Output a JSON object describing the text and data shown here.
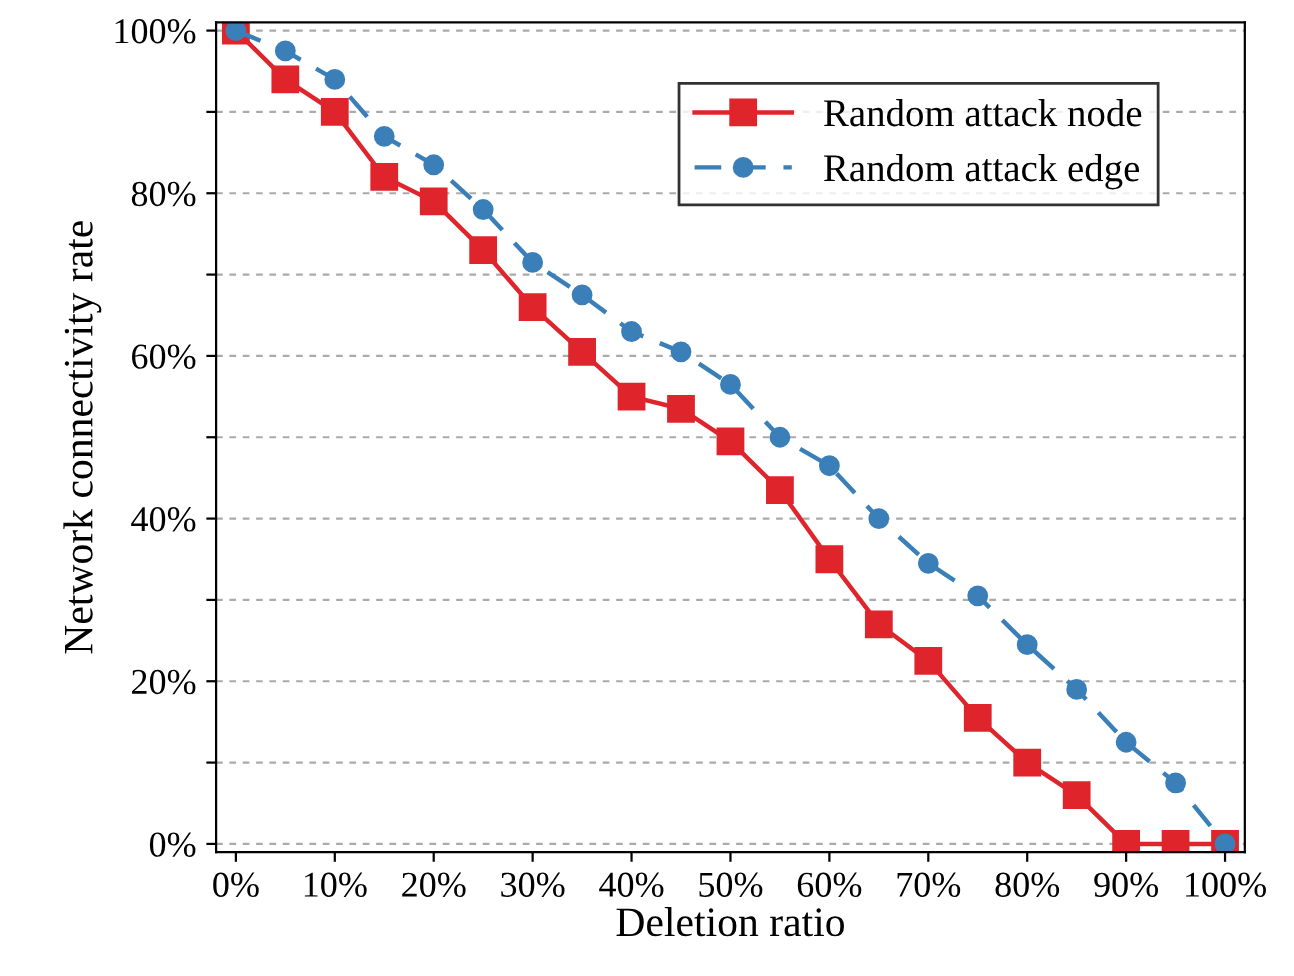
{
  "chart_data": {
    "type": "line",
    "xlabel": "Deletion ratio",
    "ylabel": "Network connectivity rate",
    "x": [
      0,
      5,
      10,
      15,
      20,
      25,
      30,
      35,
      40,
      45,
      50,
      55,
      60,
      65,
      70,
      75,
      80,
      85,
      90,
      95,
      100
    ],
    "series": [
      {
        "name": "Random attack node",
        "color": "#e0242b",
        "marker": "square",
        "line_style": "solid",
        "values": [
          100,
          94,
          90,
          82,
          79,
          73,
          66,
          60.5,
          55,
          53.5,
          49.5,
          43.5,
          35,
          27,
          22.5,
          15.5,
          10,
          6,
          0,
          0,
          0
        ]
      },
      {
        "name": "Random attack edge",
        "color": "#3b7fb9",
        "marker": "circle",
        "line_style": "dashed",
        "values": [
          100,
          97.5,
          94,
          87,
          83.5,
          78,
          71.5,
          67.5,
          63,
          60.5,
          56.5,
          50,
          46.5,
          40,
          34.5,
          30.5,
          24.5,
          19,
          12.5,
          7.5,
          0
        ]
      }
    ],
    "xlim": [
      -2,
      102
    ],
    "ylim": [
      -1,
      101
    ],
    "xticks": [
      {
        "value": 0,
        "label": "0%"
      },
      {
        "value": 10,
        "label": "10%"
      },
      {
        "value": 20,
        "label": "20%"
      },
      {
        "value": 30,
        "label": "30%"
      },
      {
        "value": 40,
        "label": "40%"
      },
      {
        "value": 50,
        "label": "50%"
      },
      {
        "value": 60,
        "label": "60%"
      },
      {
        "value": 70,
        "label": "70%"
      },
      {
        "value": 80,
        "label": "80%"
      },
      {
        "value": 90,
        "label": "90%"
      },
      {
        "value": 100,
        "label": "100%"
      }
    ],
    "yticks": [
      {
        "value": 0,
        "label": "0%"
      },
      {
        "value": 10,
        "label": null
      },
      {
        "value": 20,
        "label": "20%"
      },
      {
        "value": 30,
        "label": null
      },
      {
        "value": 40,
        "label": "40%"
      },
      {
        "value": 50,
        "label": null
      },
      {
        "value": 60,
        "label": "60%"
      },
      {
        "value": 70,
        "label": null
      },
      {
        "value": 80,
        "label": "80%"
      },
      {
        "value": 90,
        "label": null
      },
      {
        "value": 100,
        "label": "100%"
      }
    ],
    "grid": "y",
    "legend": "top right"
  }
}
